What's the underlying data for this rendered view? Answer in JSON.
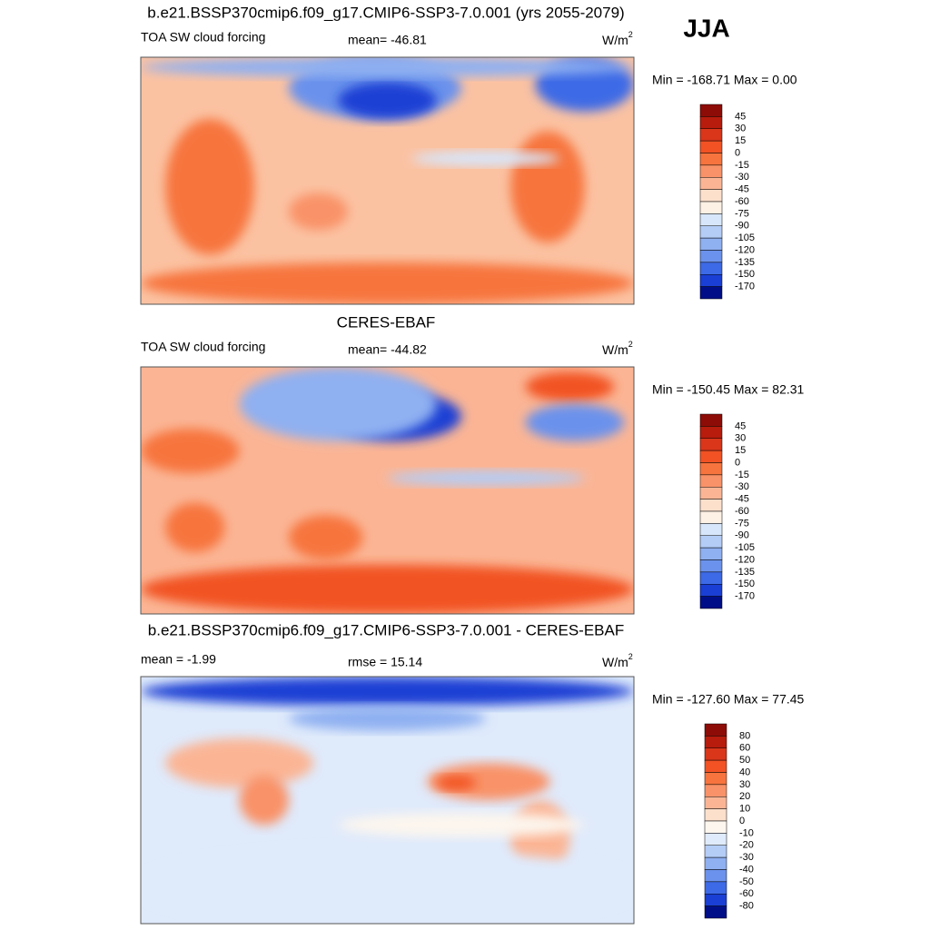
{
  "header": {
    "season": "JJA"
  },
  "panels": [
    {
      "title": "b.e21.BSSP370cmip6.f09_g17.CMIP6-SSP3-7.0.001 (yrs 2055-2079)",
      "left": "TOA SW cloud forcing",
      "center": "mean= -46.81",
      "units": {
        "base": "W/m",
        "exp": "2"
      },
      "minmax": "Min = -168.71 Max =   0.00",
      "levels": [
        45,
        30,
        15,
        0,
        -15,
        -30,
        -45,
        -60,
        -75,
        -90,
        -105,
        -120,
        -135,
        -150,
        -170
      ],
      "colors": [
        "#8e0c07",
        "#b71c0d",
        "#d9361a",
        "#f25224",
        "#f7743e",
        "#f99268",
        "#fbb595",
        "#fde0cc",
        "#fdf0e4",
        "#d7e6fb",
        "#b3cdf7",
        "#8fb0f1",
        "#6b92ec",
        "#3d6ae6",
        "#1a3fd4",
        "#000f87"
      ]
    },
    {
      "title": "CERES-EBAF",
      "left": "TOA SW cloud forcing",
      "center": "mean= -44.82",
      "units": {
        "base": "W/m",
        "exp": "2"
      },
      "minmax": "Min = -150.45 Max =  82.31",
      "levels": [
        45,
        30,
        15,
        0,
        -15,
        -30,
        -45,
        -60,
        -75,
        -90,
        -105,
        -120,
        -135,
        -150,
        -170
      ],
      "colors": [
        "#8e0c07",
        "#b71c0d",
        "#d9361a",
        "#f25224",
        "#f7743e",
        "#f99268",
        "#fbb595",
        "#fde0cc",
        "#fdf0e4",
        "#d7e6fb",
        "#b3cdf7",
        "#8fb0f1",
        "#6b92ec",
        "#3d6ae6",
        "#1a3fd4",
        "#000f87"
      ]
    },
    {
      "title": "b.e21.BSSP370cmip6.f09_g17.CMIP6-SSP3-7.0.001 - CERES-EBAF",
      "left": "mean =  -1.99",
      "center": "rmse =  15.14",
      "units": {
        "base": "W/m",
        "exp": "2"
      },
      "minmax": "Min = -127.60 Max =  77.45",
      "levels": [
        80,
        60,
        50,
        40,
        30,
        20,
        10,
        0,
        -10,
        -20,
        -30,
        -40,
        -50,
        -60,
        -80
      ],
      "colors": [
        "#8e0c07",
        "#b71c0d",
        "#d9361a",
        "#f25224",
        "#f7743e",
        "#f99268",
        "#fbb595",
        "#fde0cc",
        "#fdf6ee",
        "#dfeafb",
        "#b3cdf7",
        "#8fb0f1",
        "#6b92ec",
        "#3d6ae6",
        "#1a3fd4",
        "#000f87"
      ]
    }
  ]
}
